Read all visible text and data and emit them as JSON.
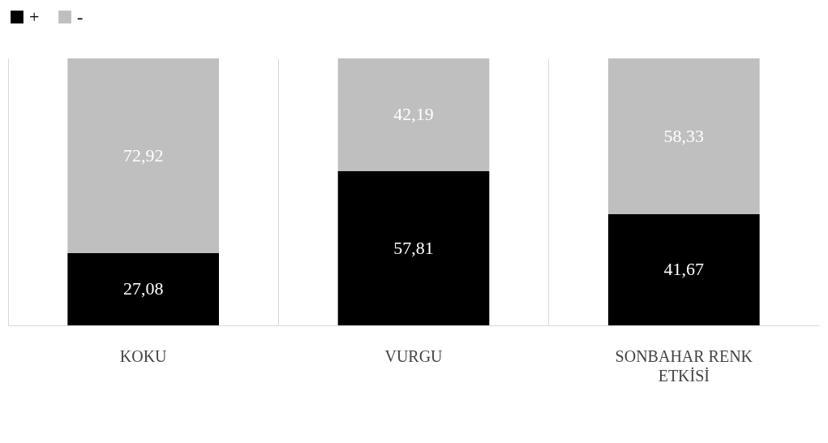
{
  "chart_data": {
    "type": "bar",
    "stacked": true,
    "categories": [
      "KOKU",
      "VURGU",
      "SONBAHAR RENK ETKİSİ"
    ],
    "series": [
      {
        "name": "+",
        "color": "#000000",
        "values": [
          27.08,
          57.81,
          41.67
        ],
        "value_labels": [
          "27,08",
          "57,81",
          "41,67"
        ]
      },
      {
        "name": "-",
        "color": "#bfbfbf",
        "values": [
          72.92,
          42.19,
          58.33
        ],
        "value_labels": [
          "72,92",
          "42,19",
          "58,33"
        ]
      }
    ],
    "legend": "top",
    "grid": "x"
  }
}
